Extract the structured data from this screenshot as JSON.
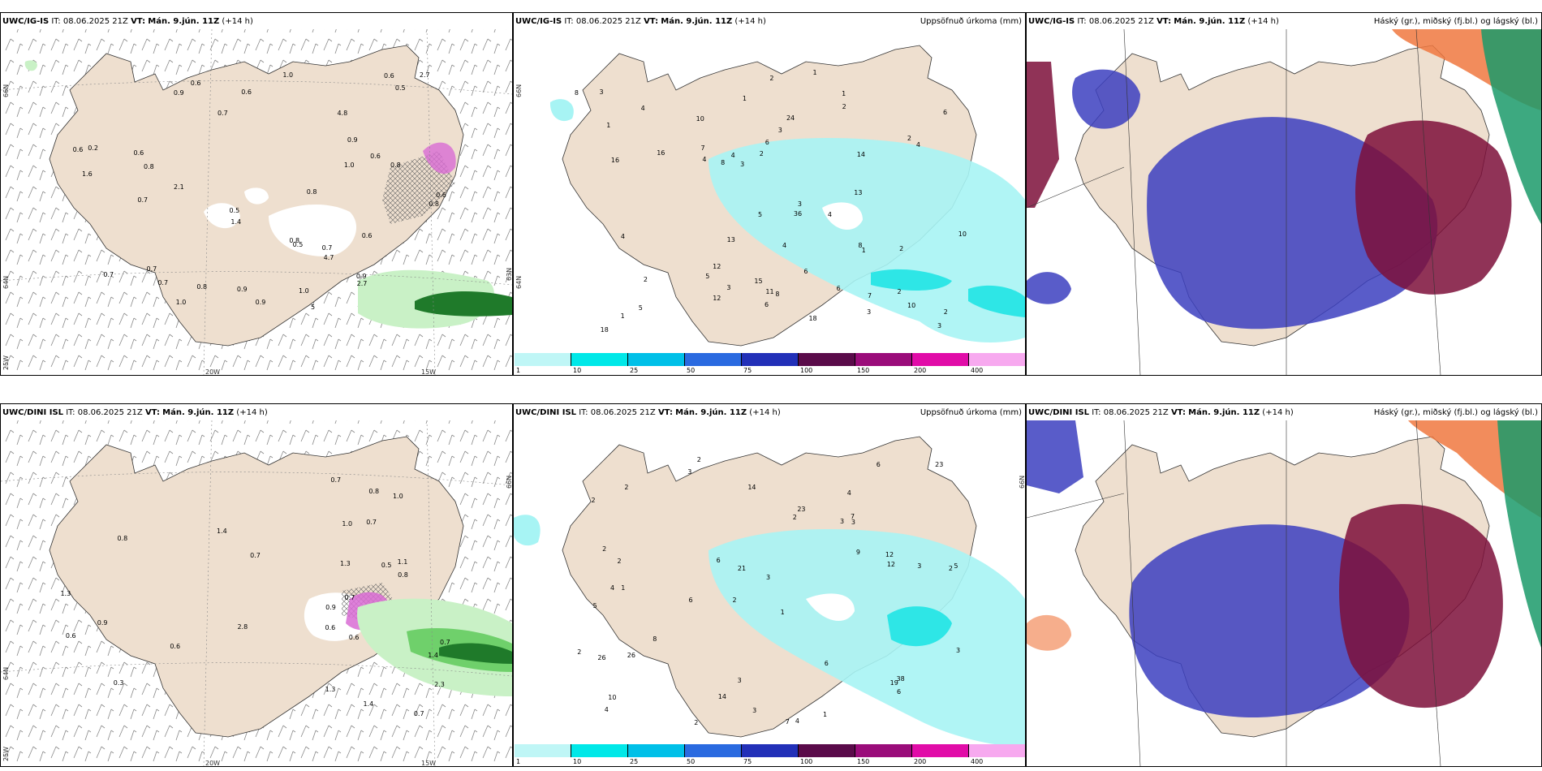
{
  "panels": [
    {
      "id": "top-wind",
      "model": "UWC/IG-IS",
      "it_label": "IT:",
      "it_value": "08.06.2025 21Z",
      "vt_label": "VT:",
      "vt_value": "Mán. 9.jún. 11Z",
      "lead": "(+14 h)",
      "right_title": "",
      "axis": {
        "lon_w20": "20W",
        "lon_w15": "15W",
        "lat_66": "66N",
        "lat_64": "64N",
        "lat_63": "63N",
        "lon_25": "25W"
      },
      "values": [
        "5",
        "0.9",
        "0.7",
        "0.6",
        "0.6",
        "1.0",
        "0.8",
        "2.1",
        "1.4",
        "0.7",
        "0.7",
        "0.6",
        "0.5",
        "0.8",
        "1.0",
        "0.6",
        "1.6",
        "0.5",
        "0.6",
        "0.8",
        "0.9",
        "0.5",
        "1.0",
        "2.7",
        "0.8",
        "0.9",
        "0.7",
        "0.8",
        "0.9",
        "0.7",
        "4.7",
        "2.7",
        "4.8",
        "0.8",
        "0.6",
        "0.9",
        "1.0",
        "0.2",
        "0.6",
        "0.7",
        "0.6"
      ]
    },
    {
      "id": "top-precip",
      "model": "UWC/IG-IS",
      "it_label": "IT:",
      "it_value": "08.06.2025 21Z",
      "vt_label": "VT:",
      "vt_value": "Mán. 9.jún. 11Z",
      "lead": "(+14 h)",
      "right_title": "Uppsöfnuð úrkoma (mm)",
      "axis": {
        "lat_66": "66N",
        "lat_64": "64N"
      },
      "values": [
        "1",
        "2",
        "3",
        "4",
        "1",
        "1",
        "2",
        "1",
        "7",
        "5",
        "3",
        "4",
        "3",
        "2",
        "6",
        "7",
        "8",
        "4",
        "5",
        "6",
        "8",
        "5",
        "6",
        "4",
        "1",
        "2",
        "4",
        "3",
        "4",
        "6",
        "10",
        "13",
        "24",
        "18",
        "36",
        "18",
        "11",
        "14",
        "16",
        "15",
        "16",
        "12",
        "10",
        "12",
        "13",
        "8",
        "6",
        "8",
        "10",
        "2",
        "1",
        "2",
        "3",
        "3",
        "2",
        "4",
        "2",
        "3"
      ]
    },
    {
      "id": "top-cloud",
      "model": "UWC/IG-IS",
      "it_label": "IT:",
      "it_value": "08.06.2025 21Z",
      "vt_label": "VT:",
      "vt_value": "Mán. 9.jún. 11Z",
      "lead": "(+14 h)",
      "right_title": "Háský (gr.), miðský (fj.bl.) og lágský (bl.)"
    },
    {
      "id": "bottom-wind",
      "model": "UWC/DINI ISL",
      "it_label": "IT:",
      "it_value": "08.06.2025 21Z",
      "vt_label": "VT:",
      "vt_value": "Mán. 9.jún. 11Z",
      "lead": "(+14 h)",
      "right_title": "",
      "axis": {
        "lon_w20": "20W",
        "lon_w15": "15W",
        "lat_66": "66N",
        "lat_64": "64N",
        "lon_25": "25W"
      },
      "values": [
        "0.6",
        "0.7",
        "0.5",
        "1.4",
        "1.3",
        "0.7",
        "1.1",
        "0.7",
        "2.3",
        "1.4",
        "0.7",
        "0.9",
        "0.6",
        "0.6",
        "0.6",
        "0.7",
        "1.0",
        "0.9",
        "0.8",
        "1.4",
        "2.8",
        "1.3",
        "1.3",
        "0.7",
        "0.8",
        "0.3",
        "0.8",
        "1.0"
      ]
    },
    {
      "id": "bottom-precip",
      "model": "UWC/DINI ISL",
      "it_label": "IT:",
      "it_value": "08.06.2025 21Z",
      "vt_label": "VT:",
      "vt_value": "Mán. 9.jún. 11Z",
      "lead": "(+14 h)",
      "right_title": "Uppsöfnuð úrkoma (mm)",
      "axis": {
        "lat_66": "66N"
      },
      "values": [
        "2",
        "4",
        "2",
        "2",
        "1",
        "1",
        "2",
        "3",
        "5",
        "2",
        "3",
        "4",
        "3",
        "6",
        "7",
        "4",
        "3",
        "6",
        "9",
        "8",
        "2",
        "4",
        "5",
        "3",
        "2",
        "2",
        "21",
        "12",
        "38",
        "26",
        "19",
        "23",
        "26",
        "6",
        "6",
        "3",
        "12",
        "14",
        "23",
        "14",
        "10",
        "2",
        "1",
        "2",
        "3",
        "3",
        "6",
        "7"
      ]
    },
    {
      "id": "bottom-cloud",
      "model": "UWC/DINI ISL",
      "it_label": "IT:",
      "it_value": "08.06.2025 21Z",
      "vt_label": "VT:",
      "vt_value": "Mán. 9.jún. 11Z",
      "lead": "(+14 h)",
      "right_title": "Háský (gr.), miðský (fj.bl.) og lágský (bl.)"
    }
  ],
  "colorbar": {
    "ticks": [
      "1",
      "10",
      "25",
      "50",
      "75",
      "100",
      "150",
      "200",
      "400"
    ],
    "colors": [
      "#bff6f6",
      "#00e8e8",
      "#00c0e8",
      "#2a6ae0",
      "#2230b8",
      "#5a0b4a",
      "#9a0c7a",
      "#e10ca8",
      "#f7a9ef"
    ]
  },
  "colors": {
    "land": "#eedfcf",
    "precip_light": "#a7f4f4",
    "precip_mid": "#2ee6e6",
    "wind_green_light": "#c9f1c6",
    "wind_green_mid": "#6fd06b",
    "wind_green_dark": "#1f7a2a",
    "wind_magenta": "#d86bd3",
    "cloud_high": "#1b9a6a",
    "cloud_mid": "#7c0f3a",
    "cloud_low": "#3c40c0",
    "cloud_orange": "#f07840"
  }
}
